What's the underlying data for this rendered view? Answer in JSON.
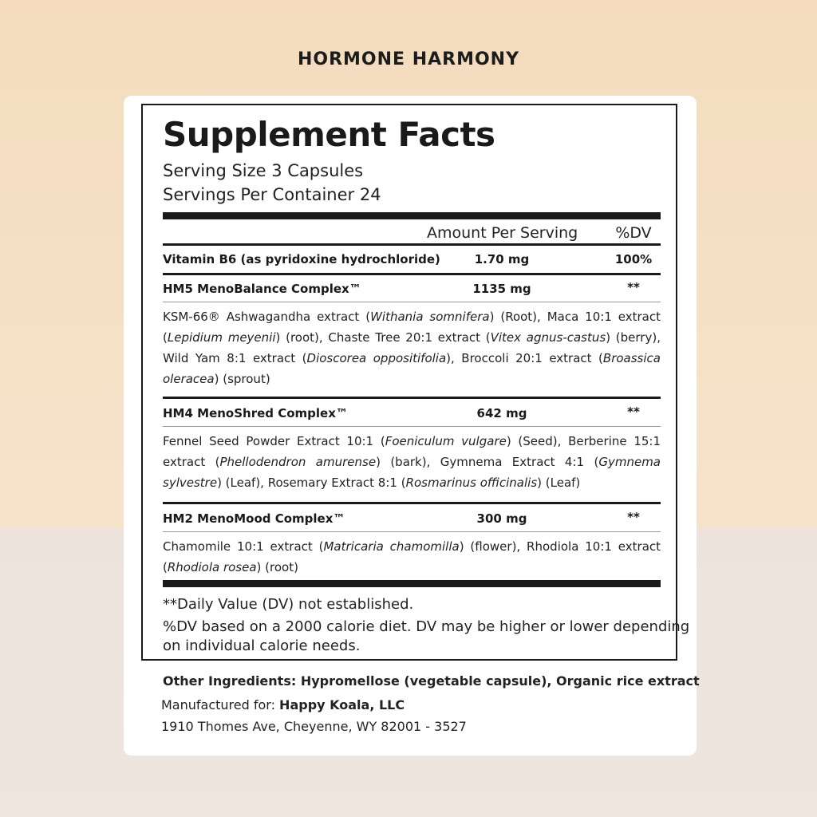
{
  "brand": "HORMONE HARMONY",
  "label": {
    "title": "Supplement Facts",
    "serving_size": "Serving Size 3 Capsules",
    "servings_per_container": "Servings Per Container 24",
    "header": {
      "amount": "Amount Per Serving",
      "dv": "%DV"
    },
    "rows": [
      {
        "name": "Vitamin B6 (as pyridoxine hydrochloride)",
        "amount": "1.70 mg",
        "dv": "100%"
      },
      {
        "name": "HM5 MenoBalance Complex™",
        "amount": "1135 mg",
        "dv": "**",
        "desc": [
          {
            "t": "KSM-66® Ashwagandha extract ("
          },
          {
            "t": "Withania somnifera",
            "i": true
          },
          {
            "t": ") (Root), Maca 10:1 extract ("
          },
          {
            "t": "Lepidium meyenii",
            "i": true
          },
          {
            "t": ") (root), Chaste Tree 20:1 extract ("
          },
          {
            "t": "Vitex agnus-castus",
            "i": true
          },
          {
            "t": ") (berry), Wild Yam 8:1 extract ("
          },
          {
            "t": "Dioscorea oppositifolia",
            "i": true
          },
          {
            "t": "), Broccoli 20:1 extract ("
          },
          {
            "t": "Broassica oleracea",
            "i": true
          },
          {
            "t": ") (sprout)"
          }
        ]
      },
      {
        "name": "HM4 MenoShred Complex™",
        "amount": "642 mg",
        "dv": "**",
        "desc": [
          {
            "t": "Fennel Seed Powder Extract 10:1 ("
          },
          {
            "t": "Foeniculum vulgare",
            "i": true
          },
          {
            "t": ") (Seed), Berberine 15:1 extract ("
          },
          {
            "t": "Phellodendron amurense",
            "i": true
          },
          {
            "t": ") (bark), Gymnema Extract 4:1 ("
          },
          {
            "t": "Gymnema sylvestre",
            "i": true
          },
          {
            "t": ") (Leaf), Rosemary Extract 8:1 ("
          },
          {
            "t": "Rosmarinus officinalis",
            "i": true
          },
          {
            "t": ") (Leaf)"
          }
        ]
      },
      {
        "name": "HM2 MenoMood Complex™",
        "amount": "300 mg",
        "dv": "**",
        "desc": [
          {
            "t": "Chamomile 10:1 extract ("
          },
          {
            "t": "Matricaria chamomilla",
            "i": true
          },
          {
            "t": ") (flower), Rhodiola 10:1 extract ("
          },
          {
            "t": "Rhodiola rosea",
            "i": true
          },
          {
            "t": ") (root)"
          }
        ]
      }
    ],
    "footnote_1": "**Daily Value (DV) not established.",
    "footnote_2": "%DV based on a 2000 calorie diet. DV may be higher or lower depending",
    "footnote_3": "on individual calorie needs."
  },
  "other_ingredients": "Other Ingredients: Hypromellose (vegetable capsule), Organic rice extract",
  "manufacturer": {
    "prefix": "Manufactured for: ",
    "name": "Happy Koala, LLC",
    "address": "1910 Thomes Ave, Cheyenne, WY 82001 - 3527"
  }
}
